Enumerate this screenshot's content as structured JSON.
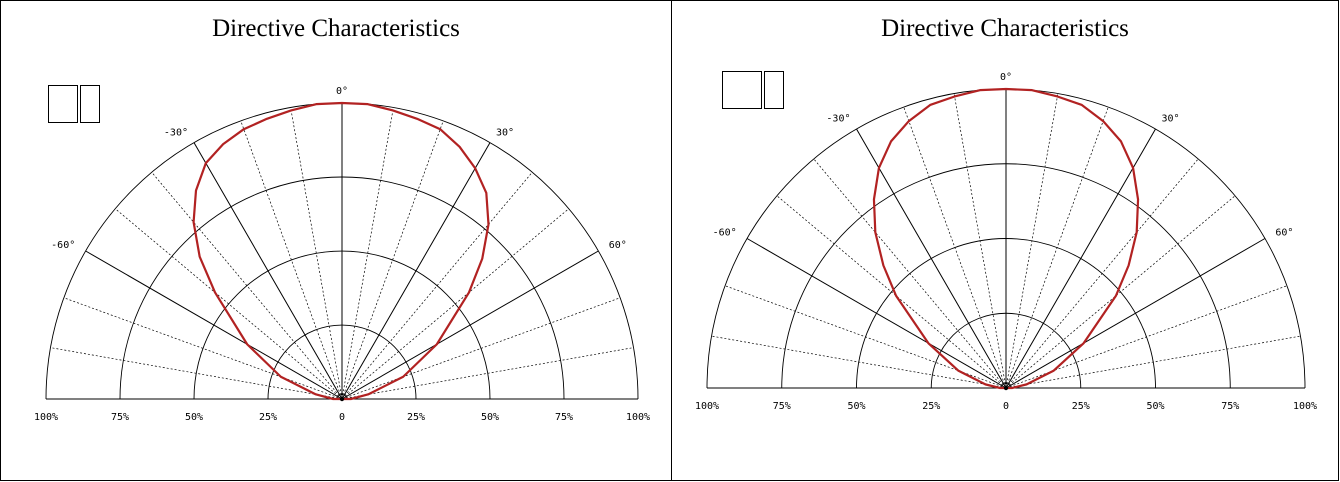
{
  "chart_data": [
    {
      "type": "polar",
      "title": "Directive Characteristics",
      "angle_labels": [
        "0°",
        "-30°",
        "30°",
        "-60°",
        "60°"
      ],
      "radial_tick_labels": [
        "100%",
        "75%",
        "50%",
        "25%",
        "0",
        "25%",
        "50%",
        "75%",
        "100%"
      ],
      "angle_range": [
        -90,
        90
      ],
      "radial_range": [
        0,
        100
      ],
      "grid": true,
      "legend_placement": "top-left",
      "series": [
        {
          "color": "#b22222",
          "points": [
            {
              "angle": -90,
              "value": 3
            },
            {
              "angle": -80,
              "value": 9
            },
            {
              "angle": -70,
              "value": 22
            },
            {
              "angle": -60,
              "value": 37
            },
            {
              "angle": -50,
              "value": 56
            },
            {
              "angle": -45,
              "value": 68
            },
            {
              "angle": -40,
              "value": 78
            },
            {
              "angle": -35,
              "value": 86
            },
            {
              "angle": -30,
              "value": 92
            },
            {
              "angle": -25,
              "value": 95
            },
            {
              "angle": -20,
              "value": 97
            },
            {
              "angle": -15,
              "value": 98
            },
            {
              "angle": -10,
              "value": 99
            },
            {
              "angle": -5,
              "value": 100
            },
            {
              "angle": 0,
              "value": 100
            },
            {
              "angle": 5,
              "value": 100
            },
            {
              "angle": 10,
              "value": 99
            },
            {
              "angle": 15,
              "value": 98
            },
            {
              "angle": 20,
              "value": 97
            },
            {
              "angle": 25,
              "value": 94
            },
            {
              "angle": 30,
              "value": 90
            },
            {
              "angle": 35,
              "value": 85
            },
            {
              "angle": 40,
              "value": 77
            },
            {
              "angle": 45,
              "value": 67
            },
            {
              "angle": 50,
              "value": 56
            },
            {
              "angle": 60,
              "value": 37
            },
            {
              "angle": 70,
              "value": 22
            },
            {
              "angle": 80,
              "value": 9
            },
            {
              "angle": 90,
              "value": 3
            }
          ]
        }
      ]
    },
    {
      "type": "polar",
      "title": "Directive Characteristics",
      "angle_labels": [
        "0°",
        "-30°",
        "30°",
        "-60°",
        "60°"
      ],
      "radial_tick_labels": [
        "100%",
        "75%",
        "50%",
        "25%",
        "0",
        "25%",
        "50%",
        "75%",
        "100%"
      ],
      "angle_range": [
        -90,
        90
      ],
      "radial_range": [
        0,
        100
      ],
      "grid": true,
      "legend_placement": "top-left",
      "series": [
        {
          "color": "#b22222",
          "points": [
            {
              "angle": -90,
              "value": 2
            },
            {
              "angle": -80,
              "value": 7
            },
            {
              "angle": -70,
              "value": 17
            },
            {
              "angle": -60,
              "value": 30
            },
            {
              "angle": -50,
              "value": 48
            },
            {
              "angle": -45,
              "value": 58
            },
            {
              "angle": -40,
              "value": 68
            },
            {
              "angle": -35,
              "value": 77
            },
            {
              "angle": -30,
              "value": 85
            },
            {
              "angle": -25,
              "value": 91
            },
            {
              "angle": -20,
              "value": 95
            },
            {
              "angle": -15,
              "value": 98
            },
            {
              "angle": -10,
              "value": 99
            },
            {
              "angle": -5,
              "value": 100
            },
            {
              "angle": 0,
              "value": 100
            },
            {
              "angle": 5,
              "value": 100
            },
            {
              "angle": 10,
              "value": 99
            },
            {
              "angle": 15,
              "value": 98
            },
            {
              "angle": 20,
              "value": 95
            },
            {
              "angle": 25,
              "value": 91
            },
            {
              "angle": 30,
              "value": 85
            },
            {
              "angle": 35,
              "value": 77
            },
            {
              "angle": 40,
              "value": 68
            },
            {
              "angle": 45,
              "value": 58
            },
            {
              "angle": 50,
              "value": 48
            },
            {
              "angle": 60,
              "value": 30
            },
            {
              "angle": 70,
              "value": 17
            },
            {
              "angle": 80,
              "value": 7
            },
            {
              "angle": 90,
              "value": 2
            }
          ]
        }
      ]
    }
  ]
}
